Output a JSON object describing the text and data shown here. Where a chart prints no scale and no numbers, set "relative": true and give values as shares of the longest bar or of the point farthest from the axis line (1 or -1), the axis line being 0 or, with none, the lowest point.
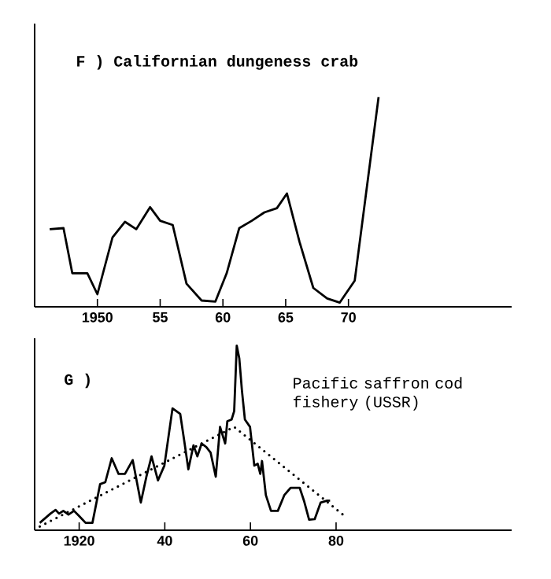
{
  "chart_data": [
    {
      "type": "line",
      "title": "F ) Californian dungeness crab",
      "relative": true,
      "xlim": [
        1945,
        1983
      ],
      "xticks": [
        1950,
        {
          "value": 1955,
          "label": "55"
        },
        {
          "value": 1960,
          "label": "60"
        },
        {
          "value": 1965,
          "label": "65"
        },
        {
          "value": 1970,
          "label": "70"
        }
      ],
      "series": [
        {
          "color": "#000000",
          "line_style": "solid",
          "x": [
            1946.2,
            1947.3,
            1948,
            1949.2,
            1950,
            1951.2,
            1952.2,
            1953.1,
            1954.2,
            1955,
            1956,
            1957.1,
            1958.3,
            1959.4,
            1960.3,
            1961.3,
            1962.3,
            1963.3,
            1964.3,
            1965.1,
            1966.1,
            1967.2,
            1968.3,
            1969.3,
            1970.5,
            1972.4
          ],
          "values": [
            0.37,
            0.375,
            0.16,
            0.16,
            0.06,
            0.33,
            0.405,
            0.37,
            0.475,
            0.41,
            0.39,
            0.11,
            0.03,
            0.025,
            0.16,
            0.375,
            0.41,
            0.45,
            0.47,
            0.54,
            0.31,
            0.09,
            0.04,
            0.02,
            0.125,
            1.0
          ]
        }
      ]
    },
    {
      "type": "line",
      "title": "G )",
      "annotations": [
        "Pacific saffron cod fishery (USSR)"
      ],
      "relative": true,
      "xlim": [
        1909.6,
        2021
      ],
      "xticks": [
        1920,
        {
          "value": 1940,
          "label": "40"
        },
        {
          "value": 1960,
          "label": "60"
        },
        {
          "value": 1980,
          "label": "80"
        }
      ],
      "series": [
        {
          "color": "#000000",
          "line_style": "solid",
          "x": [
            1910.8,
            1913.3,
            1914.5,
            1915.3,
            1916.3,
            1917.5,
            1918.8,
            1920,
            1921.5,
            1923.1,
            1924.9,
            1926.1,
            1927.6,
            1929.2,
            1930.7,
            1932.5,
            1934.4,
            1935.7,
            1936.9,
            1938.4,
            1939.9,
            1941.8,
            1943.6,
            1944.5,
            1945.5,
            1946.7,
            1947.6,
            1948.6,
            1949.7,
            1950.7,
            1951.9,
            1952.9,
            1954.1,
            1954.6,
            1955.6,
            1956.2,
            1956.8,
            1957.4,
            1958.0,
            1958.7,
            1959.9,
            1960.9,
            1961.7,
            1962.3,
            1962.7,
            1963.6,
            1964.8,
            1966.4,
            1967.9,
            1969.4,
            1971.5,
            1972.5,
            1973.7,
            1975.0,
            1976.4,
            1977.9,
            1978.6
          ],
          "values": [
            0.04,
            0.09,
            0.11,
            0.09,
            0.105,
            0.085,
            0.105,
            0.077,
            0.04,
            0.04,
            0.25,
            0.26,
            0.39,
            0.305,
            0.305,
            0.38,
            0.15,
            0.29,
            0.4,
            0.27,
            0.35,
            0.66,
            0.63,
            0.49,
            0.33,
            0.46,
            0.4,
            0.47,
            0.45,
            0.42,
            0.29,
            0.56,
            0.47,
            0.59,
            0.6,
            0.645,
            1.0,
            0.93,
            0.76,
            0.6,
            0.56,
            0.35,
            0.36,
            0.305,
            0.375,
            0.19,
            0.105,
            0.105,
            0.19,
            0.23,
            0.23,
            0.16,
            0.057,
            0.06,
            0.15,
            0.16,
            0.16
          ]
        },
        {
          "type": "line",
          "color": "#000000",
          "line_style": "dotted",
          "x": [
            1910.8,
            1956.2,
            1982
          ],
          "values": [
            0.02,
            0.56,
            0.077
          ]
        }
      ]
    }
  ]
}
